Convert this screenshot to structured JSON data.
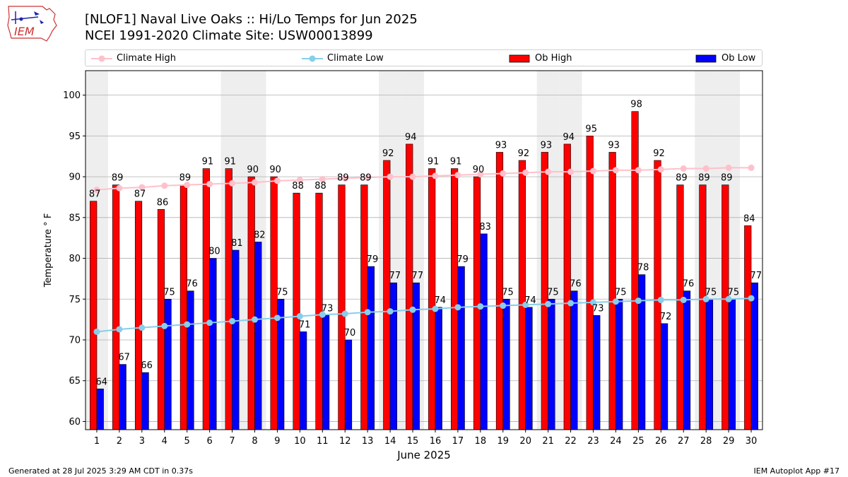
{
  "header": {
    "title_line1": "[NLOF1] Naval Live Oaks :: Hi/Lo Temps for Jun 2025",
    "title_line2": "NCEI 1991-2020 Climate Site: USW00013899",
    "logo_text": "IEM"
  },
  "footer": {
    "generated": "Generated at 28 Jul 2025 3:29 AM CDT in 0.37s",
    "app": "IEM Autoplot App #17"
  },
  "legend": {
    "climate_high": "Climate High",
    "climate_low": "Climate Low",
    "ob_high": "Ob High",
    "ob_low": "Ob Low"
  },
  "colors": {
    "ob_high": "#ff0000",
    "ob_low": "#0000ff",
    "climate_high": "#ffc0cb",
    "climate_low": "#87ceeb",
    "weekend_shade": "#eeeeee"
  },
  "chart_data": {
    "type": "bar",
    "xlabel": "June 2025",
    "ylabel": "Temperature ° F",
    "ylim": [
      59,
      103
    ],
    "yticks": [
      60,
      65,
      70,
      75,
      80,
      85,
      90,
      95,
      100
    ],
    "grid": true,
    "categories": [
      "1",
      "2",
      "3",
      "4",
      "5",
      "6",
      "7",
      "8",
      "9",
      "10",
      "11",
      "12",
      "13",
      "14",
      "15",
      "16",
      "17",
      "18",
      "19",
      "20",
      "21",
      "22",
      "23",
      "24",
      "25",
      "26",
      "27",
      "28",
      "29",
      "30"
    ],
    "weekend_days": [
      1,
      7,
      8,
      14,
      15,
      21,
      22,
      28,
      29
    ],
    "series": [
      {
        "name": "Ob High",
        "kind": "bar",
        "values": [
          87,
          89,
          87,
          86,
          89,
          91,
          91,
          90,
          90,
          88,
          88,
          89,
          89,
          92,
          94,
          91,
          91,
          90,
          93,
          92,
          93,
          94,
          95,
          93,
          98,
          92,
          89,
          89,
          89,
          84
        ]
      },
      {
        "name": "Ob Low",
        "kind": "bar",
        "values": [
          64,
          67,
          66,
          75,
          76,
          80,
          81,
          82,
          75,
          71,
          73,
          70,
          79,
          77,
          77,
          74,
          79,
          83,
          75,
          74,
          75,
          76,
          73,
          75,
          78,
          72,
          76,
          75,
          75,
          77
        ]
      },
      {
        "name": "Climate High",
        "kind": "line",
        "values": [
          88.4,
          88.6,
          88.7,
          88.9,
          89.0,
          89.1,
          89.2,
          89.3,
          89.5,
          89.6,
          89.7,
          89.8,
          89.9,
          90.0,
          90.0,
          90.1,
          90.2,
          90.3,
          90.4,
          90.5,
          90.6,
          90.6,
          90.7,
          90.8,
          90.8,
          90.9,
          91.0,
          91.0,
          91.1,
          91.1
        ]
      },
      {
        "name": "Climate Low",
        "kind": "line",
        "values": [
          71.0,
          71.3,
          71.5,
          71.7,
          71.9,
          72.1,
          72.3,
          72.5,
          72.7,
          72.9,
          73.1,
          73.2,
          73.4,
          73.5,
          73.7,
          73.8,
          74.0,
          74.1,
          74.2,
          74.3,
          74.4,
          74.5,
          74.6,
          74.7,
          74.8,
          74.9,
          74.9,
          75.0,
          75.0,
          75.1
        ]
      }
    ]
  }
}
